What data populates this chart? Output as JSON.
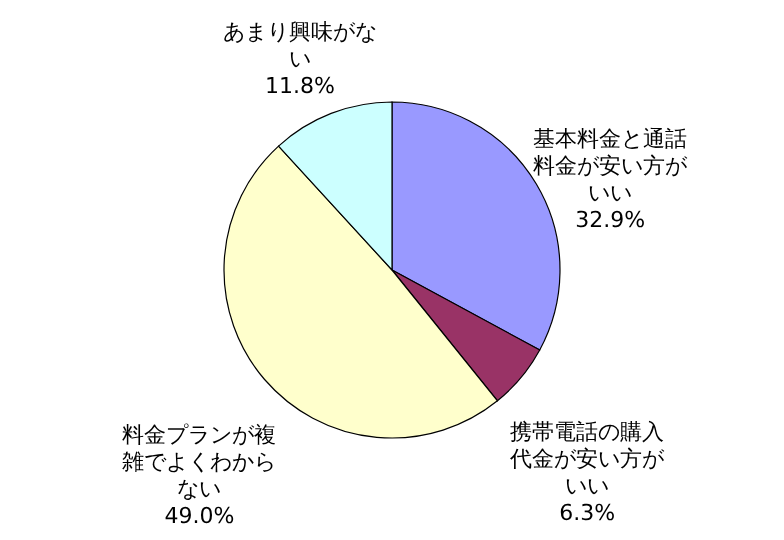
{
  "chart_data": {
    "type": "pie",
    "categories": [
      "基本料金と通話料金が安い方がいい",
      "携帯電話の購入代金が安い方がいい",
      "料金プランが複雑でよくわからない",
      "あまり興味がない"
    ],
    "values": [
      32.9,
      6.3,
      49.0,
      11.8
    ],
    "colors": [
      "#9999ff",
      "#993366",
      "#ffffcc",
      "#ccffff"
    ],
    "value_labels": [
      "32.9%",
      "6.3%",
      "49.0%",
      "11.8%"
    ]
  }
}
